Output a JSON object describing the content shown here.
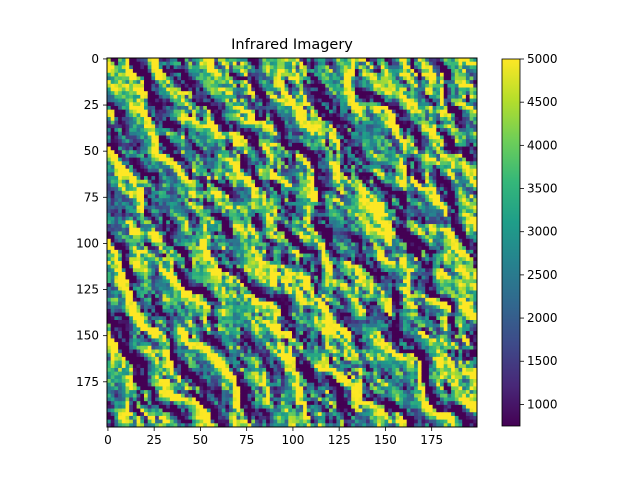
{
  "chart_data": {
    "type": "heatmap",
    "title": "Infrared Imagery",
    "xlabel": "",
    "ylabel": "",
    "grid": false,
    "image_size": [
      200,
      200
    ],
    "xlim": [
      -0.5,
      199.5
    ],
    "ylim": [
      199.5,
      -0.5
    ],
    "x_ticks": [
      0,
      25,
      50,
      75,
      100,
      125,
      150,
      175
    ],
    "y_ticks": [
      0,
      25,
      50,
      75,
      100,
      125,
      150,
      175
    ],
    "colormap": "viridis",
    "colorbar": {
      "range": [
        750,
        5000
      ],
      "ticks": [
        1000,
        1500,
        2000,
        2500,
        3000,
        3500,
        4000,
        4500,
        5000
      ],
      "colors": [
        "#440154",
        "#482878",
        "#3e4a89",
        "#31688e",
        "#26828e",
        "#1f9e89",
        "#35b779",
        "#6ece58",
        "#b5de2b",
        "#fde725"
      ]
    }
  }
}
